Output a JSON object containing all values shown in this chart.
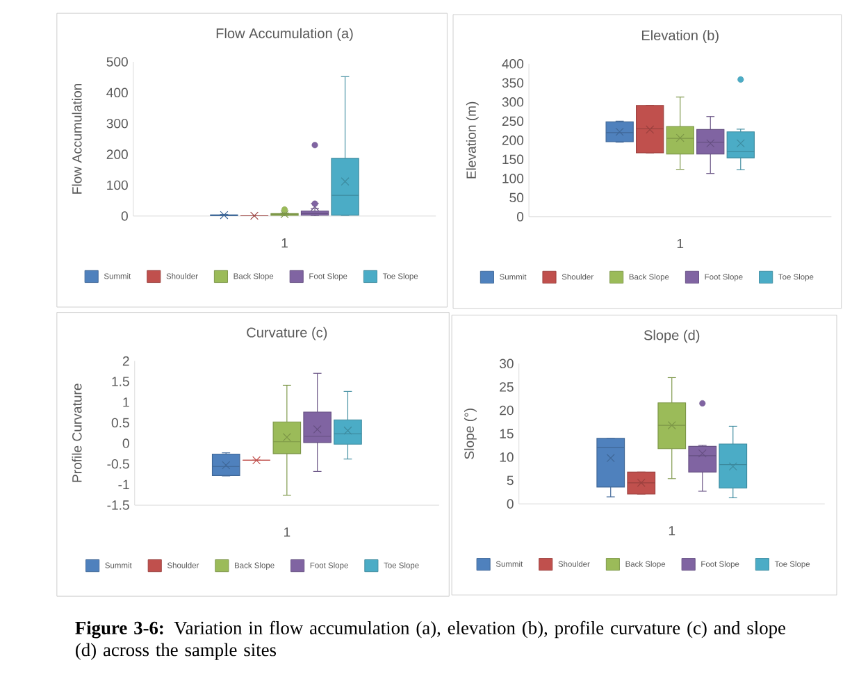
{
  "chart_data": [
    {
      "type": "box",
      "title": "Flow Accumulation (a)",
      "ylabel": "Flow Accumulation",
      "categories": [
        "1"
      ],
      "ylim": [
        0,
        500
      ],
      "yticks": [
        0,
        100,
        200,
        300,
        400,
        500
      ],
      "legend": "bottom",
      "series": [
        {
          "name": "Summit",
          "color": "#4f81bd",
          "boxes": [
            {
              "low": 0,
              "q1": 1,
              "median": 2,
              "q3": 4,
              "high": 5,
              "mean": 3
            }
          ]
        },
        {
          "name": "Shoulder",
          "color": "#c0504d",
          "boxes": [
            {
              "low": 0,
              "q1": 0,
              "median": 0,
              "q3": 1,
              "high": 1,
              "mean": 1
            }
          ]
        },
        {
          "name": "Back Slope",
          "color": "#9bbb59",
          "boxes": [
            {
              "low": 0,
              "q1": 2,
              "median": 5,
              "q3": 8,
              "high": 10,
              "mean": 6,
              "outliers": [
                21
              ]
            }
          ]
        },
        {
          "name": "Foot Slope",
          "color": "#8064a2",
          "boxes": [
            {
              "low": 0,
              "q1": 3,
              "median": 8,
              "q3": 16,
              "high": 24,
              "mean": 30,
              "outliers": [
                40,
                230
              ]
            }
          ]
        },
        {
          "name": "Toe Slope",
          "color": "#4bacc6",
          "boxes": [
            {
              "low": 2,
              "q1": 3,
              "median": 67,
              "q3": 187,
              "high": 452,
              "mean": 112
            }
          ]
        }
      ]
    },
    {
      "type": "box",
      "title": "Elevation (b)",
      "ylabel": "Elevation (m)",
      "categories": [
        "1"
      ],
      "ylim": [
        0,
        400
      ],
      "yticks": [
        0,
        50,
        100,
        150,
        200,
        250,
        300,
        350,
        400
      ],
      "legend": "bottom",
      "series": [
        {
          "name": "Summit",
          "color": "#4f81bd",
          "boxes": [
            {
              "low": 195,
              "q1": 196,
              "median": 220,
              "q3": 248,
              "high": 250,
              "mean": 222
            }
          ]
        },
        {
          "name": "Shoulder",
          "color": "#c0504d",
          "boxes": [
            {
              "low": 167,
              "q1": 167,
              "median": 230,
              "q3": 291,
              "high": 291,
              "mean": 228
            }
          ]
        },
        {
          "name": "Back Slope",
          "color": "#9bbb59",
          "boxes": [
            {
              "low": 124,
              "q1": 164,
              "median": 205,
              "q3": 236,
              "high": 313,
              "mean": 206
            }
          ]
        },
        {
          "name": "Foot Slope",
          "color": "#8064a2",
          "boxes": [
            {
              "low": 113,
              "q1": 164,
              "median": 195,
              "q3": 228,
              "high": 262,
              "mean": 192
            }
          ]
        },
        {
          "name": "Toe Slope",
          "color": "#4bacc6",
          "boxes": [
            {
              "low": 123,
              "q1": 154,
              "median": 170,
              "q3": 222,
              "high": 229,
              "mean": 192,
              "outliers": [
                359
              ]
            }
          ]
        }
      ]
    },
    {
      "type": "box",
      "title": "Curvature (c)",
      "ylabel": "Profile Curvature",
      "categories": [
        "1"
      ],
      "ylim": [
        -1.5,
        2
      ],
      "yticks": [
        -1.5,
        -1,
        -0.5,
        0,
        0.5,
        1,
        1.5,
        2
      ],
      "legend": "bottom",
      "series": [
        {
          "name": "Summit",
          "color": "#4f81bd",
          "boxes": [
            {
              "low": -0.79,
              "q1": -0.78,
              "median": -0.56,
              "q3": -0.26,
              "high": -0.23,
              "mean": -0.53
            }
          ]
        },
        {
          "name": "Shoulder",
          "color": "#c0504d",
          "boxes": [
            {
              "low": -0.41,
              "q1": -0.41,
              "median": -0.41,
              "q3": -0.41,
              "high": -0.41,
              "mean": -0.41
            }
          ]
        },
        {
          "name": "Back Slope",
          "color": "#9bbb59",
          "boxes": [
            {
              "low": -1.26,
              "q1": -0.25,
              "median": 0.04,
              "q3": 0.52,
              "high": 1.41,
              "mean": 0.15
            }
          ]
        },
        {
          "name": "Foot Slope",
          "color": "#8064a2",
          "boxes": [
            {
              "low": -0.68,
              "q1": 0.02,
              "median": 0.17,
              "q3": 0.76,
              "high": 1.7,
              "mean": 0.34
            }
          ]
        },
        {
          "name": "Toe Slope",
          "color": "#4bacc6",
          "boxes": [
            {
              "low": -0.38,
              "q1": -0.02,
              "median": 0.23,
              "q3": 0.57,
              "high": 1.26,
              "mean": 0.31
            }
          ]
        }
      ]
    },
    {
      "type": "box",
      "title": "Slope (d)",
      "ylabel": "Slope (°)",
      "categories": [
        "1"
      ],
      "ylim": [
        0,
        30
      ],
      "yticks": [
        0,
        5,
        10,
        15,
        20,
        25,
        30
      ],
      "legend": "bottom",
      "annotations": [
        "**Figure 3-6:** Variation in flow accumulation (a), elevation (b), profile curvature (c) and slope (d) across the sample sites"
      ],
      "series": [
        {
          "name": "Summit",
          "color": "#4f81bd",
          "boxes": [
            {
              "low": 1.5,
              "q1": 3.6,
              "median": 12,
              "q3": 14,
              "high": 14,
              "mean": 9.8
            }
          ]
        },
        {
          "name": "Shoulder",
          "color": "#c0504d",
          "boxes": [
            {
              "low": 2.1,
              "q1": 2.1,
              "median": 4.5,
              "q3": 6.8,
              "high": 6.8,
              "mean": 4.5
            }
          ]
        },
        {
          "name": "Back Slope",
          "color": "#9bbb59",
          "boxes": [
            {
              "low": 5.4,
              "q1": 11.8,
              "median": 16.8,
              "q3": 21.6,
              "high": 27,
              "mean": 16.8
            }
          ]
        },
        {
          "name": "Foot Slope",
          "color": "#8064a2",
          "boxes": [
            {
              "low": 2.7,
              "q1": 6.8,
              "median": 10.3,
              "q3": 12.3,
              "high": 12.5,
              "mean": 10.8,
              "outliers": [
                21.5
              ]
            }
          ]
        },
        {
          "name": "Toe Slope",
          "color": "#4bacc6",
          "boxes": [
            {
              "low": 1.3,
              "q1": 3.4,
              "median": 8.4,
              "q3": 12.8,
              "high": 16.6,
              "mean": 8
            }
          ]
        }
      ]
    }
  ]
}
